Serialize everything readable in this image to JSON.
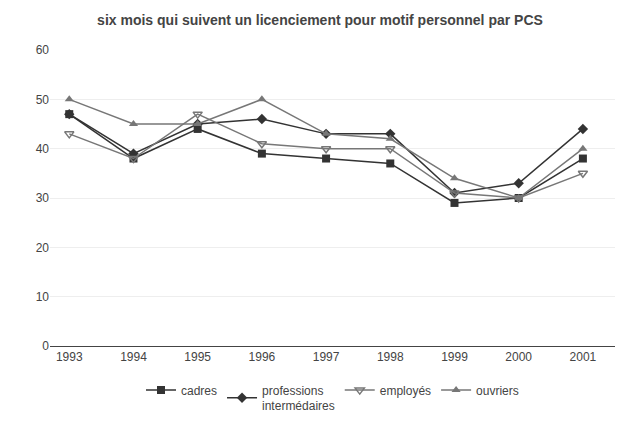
{
  "chart_data": {
    "type": "line",
    "title": "six mois qui suivent un licenciement pour motif personnel par PCS",
    "x": [
      1993,
      1994,
      1995,
      1996,
      1997,
      1998,
      1999,
      2000,
      2001
    ],
    "series": [
      {
        "name": "cadres",
        "color": "#333333",
        "marker": "square",
        "values": [
          47,
          38,
          44,
          39,
          38,
          37,
          29,
          30,
          38
        ]
      },
      {
        "name": "professions\nintermédaires",
        "color": "#333333",
        "marker": "diamond",
        "values": [
          47,
          39,
          45,
          46,
          43,
          43,
          31,
          33,
          44
        ]
      },
      {
        "name": "employés",
        "color": "#777777",
        "marker": "triangle-down-open",
        "values": [
          43,
          38,
          47,
          41,
          40,
          40,
          31,
          30,
          35
        ]
      },
      {
        "name": "ouvriers",
        "color": "#777777",
        "marker": "triangle-up",
        "values": [
          50,
          45,
          45,
          50,
          43,
          42,
          34,
          30,
          40
        ]
      }
    ],
    "xlim": [
      1992.7,
      2001.5
    ],
    "xticks": [
      1993,
      1994,
      1995,
      1996,
      1997,
      1998,
      1999,
      2000,
      2001
    ],
    "ylim": [
      0,
      60
    ],
    "yticks": [
      0,
      10,
      20,
      30,
      40,
      50,
      60
    ],
    "grid": "y",
    "legend": "bottom"
  }
}
